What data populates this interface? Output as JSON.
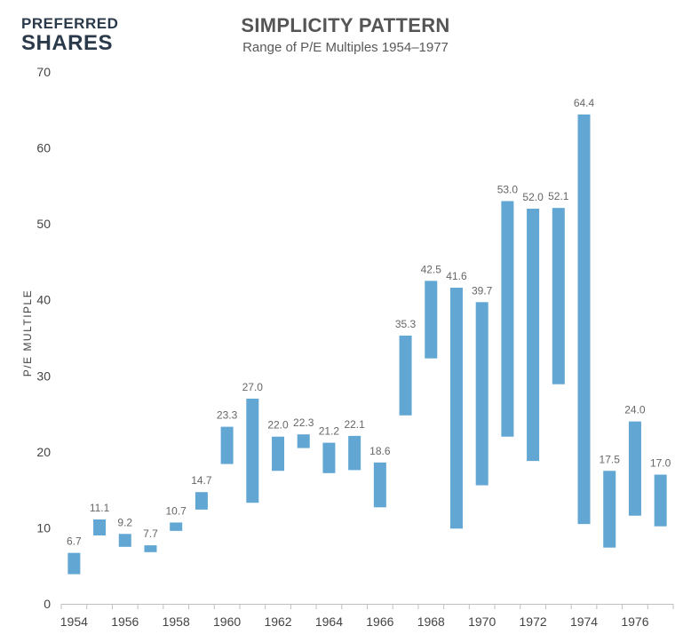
{
  "logo": {
    "line1": "PREFERRED",
    "line2": "SHARES"
  },
  "chart_data": {
    "type": "bar",
    "subtype": "floating-range",
    "title": "SIMPLICITY PATTERN",
    "subtitle": "Range of P/E Multiples 1954–1977",
    "xlabel": "",
    "ylabel": "P/E MULTIPLE",
    "ylim": [
      0,
      70
    ],
    "yticks": [
      0,
      10,
      20,
      30,
      40,
      50,
      60,
      70
    ],
    "xtick_labels": [
      "1954",
      "1956",
      "1958",
      "1960",
      "1962",
      "1964",
      "1966",
      "1968",
      "1970",
      "1972",
      "1974",
      "1976"
    ],
    "grid": false,
    "bar_color": "#62a6d3",
    "categories": [
      "1954",
      "1955",
      "1956",
      "1957",
      "1958",
      "1959",
      "1960",
      "1961",
      "1962",
      "1963",
      "1964",
      "1965",
      "1966",
      "1967",
      "1968",
      "1969",
      "1970",
      "1971",
      "1972",
      "1973",
      "1974",
      "1975",
      "1976",
      "1977"
    ],
    "low": [
      3.9,
      9.0,
      7.5,
      6.8,
      9.6,
      12.4,
      18.4,
      13.3,
      17.5,
      20.5,
      17.2,
      17.6,
      12.7,
      24.8,
      32.3,
      9.9,
      15.6,
      22.0,
      18.8,
      28.9,
      10.5,
      7.4,
      11.6,
      10.2
    ],
    "high": [
      6.7,
      11.1,
      9.2,
      7.7,
      10.7,
      14.7,
      23.3,
      27.0,
      22.0,
      22.3,
      21.2,
      22.1,
      18.6,
      35.3,
      42.5,
      41.6,
      39.7,
      53.0,
      52.0,
      52.1,
      64.4,
      17.5,
      24.0,
      17.0
    ],
    "labels": [
      "6.7",
      "11.1",
      "9.2",
      "7.7",
      "10.7",
      "14.7",
      "23.3",
      "27.0",
      "22.0",
      "22.3",
      "21.2",
      "22.1",
      "18.6",
      "35.3",
      "42.5",
      "41.6",
      "39.7",
      "53.0",
      "52.0",
      "52.1",
      "64.4",
      "17.5",
      "24.0",
      "17.0"
    ]
  }
}
